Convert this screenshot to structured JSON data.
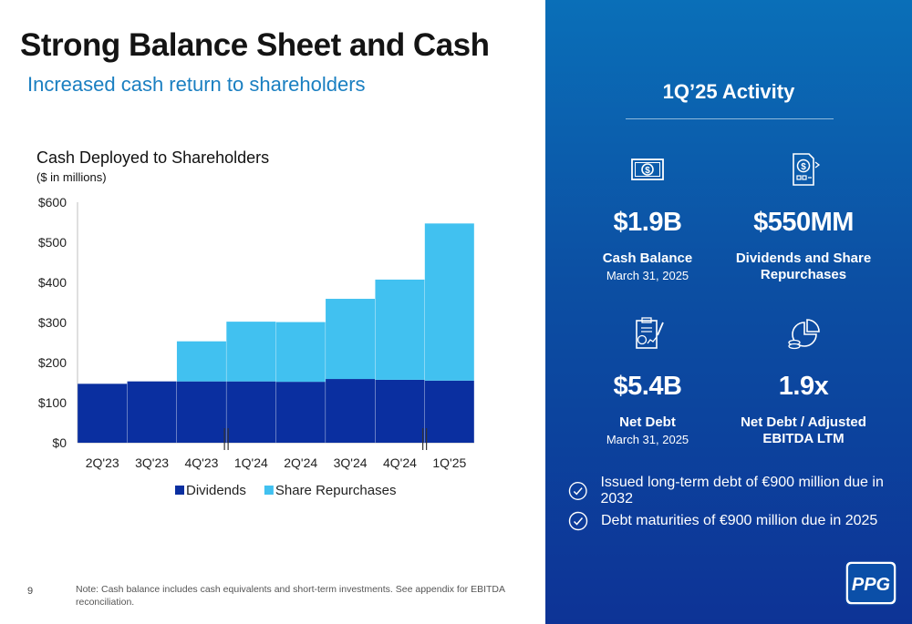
{
  "header": {
    "title": "Strong Balance Sheet and Cash",
    "subtitle": "Increased cash return to shareholders"
  },
  "chart_data": {
    "type": "bar",
    "stacked": true,
    "title": "Cash Deployed to Shareholders",
    "subtitle": "($ in millions)",
    "categories": [
      "2Q'23",
      "3Q'23",
      "4Q'23",
      "1Q'24",
      "2Q'24",
      "3Q'24",
      "4Q'24",
      "1Q'25"
    ],
    "series": [
      {
        "name": "Dividends",
        "color": "#0a2fa0",
        "values": [
          147,
          153,
          153,
          153,
          152,
          159,
          157,
          155
        ]
      },
      {
        "name": "Share Repurchases",
        "color": "#41c1f0",
        "values": [
          0,
          0,
          100,
          149,
          149,
          200,
          250,
          392
        ]
      }
    ],
    "ylim": [
      0,
      600
    ],
    "yticks": [
      "$0",
      "$100",
      "$200",
      "$300",
      "$400",
      "$500",
      "$600"
    ],
    "ytick_values": [
      0,
      100,
      200,
      300,
      400,
      500,
      600
    ],
    "grid": false,
    "legend": "bottom",
    "year_breaks_after": [
      "4Q'23",
      "4Q'24"
    ]
  },
  "panel": {
    "title": "1Q’25 Activity",
    "stats": [
      {
        "icon": "cash-icon",
        "value": "$1.9B",
        "label": "Cash Balance",
        "sub": "March 31, 2025"
      },
      {
        "icon": "dividend-document-icon",
        "value": "$550MM",
        "label": "Dividends and Share Repurchases",
        "sub": ""
      },
      {
        "icon": "debt-report-icon",
        "value": "$5.4B",
        "label": "Net Debt",
        "sub": "March 31, 2025"
      },
      {
        "icon": "ratio-chart-icon",
        "value": "1.9x",
        "label": "Net Debt / Adjusted EBITDA LTM",
        "sub": ""
      }
    ],
    "bullets": [
      "Issued long-term debt of €900 million due in 2032",
      "Debt maturities of €900 million due in 2025"
    ]
  },
  "footer": {
    "page_number": "9",
    "note": "Note: Cash balance includes cash equivalents and short-term investments. See appendix for EBITDA reconciliation."
  },
  "logo": {
    "text": "PPG",
    "icon": "ppg-logo-icon"
  }
}
